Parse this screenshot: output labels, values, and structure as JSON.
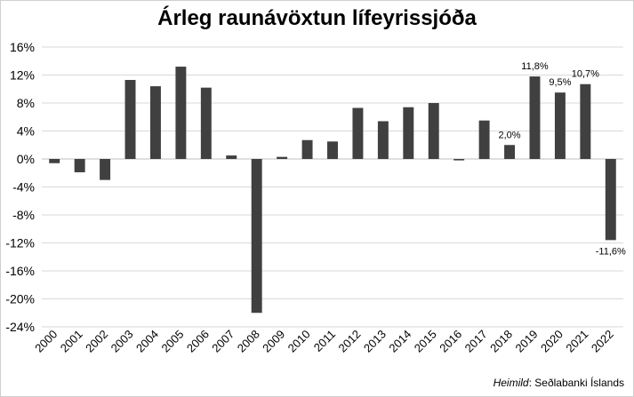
{
  "chart_data": {
    "type": "bar",
    "title": "Árleg raunávöxtun lífeyrissjóða",
    "xlabel": "",
    "ylabel": "",
    "categories": [
      "2000",
      "2001",
      "2002",
      "2003",
      "2004",
      "2005",
      "2006",
      "2007",
      "2008",
      "2009",
      "2010",
      "2011",
      "2012",
      "2013",
      "2014",
      "2015",
      "2016",
      "2017",
      "2018",
      "2019",
      "2020",
      "2021",
      "2022"
    ],
    "values": [
      -0.6,
      -1.9,
      -3.0,
      11.3,
      10.4,
      13.2,
      10.2,
      0.5,
      -22.0,
      0.3,
      2.7,
      2.5,
      7.3,
      5.4,
      7.4,
      8.0,
      -0.2,
      5.5,
      2.0,
      11.8,
      9.5,
      10.7,
      -11.6
    ],
    "ylim": [
      -24,
      16
    ],
    "yticks": [
      16,
      12,
      8,
      4,
      0,
      -4,
      -8,
      -12,
      -16,
      -20,
      -24
    ],
    "ytick_labels": [
      "16%",
      "12%",
      "8%",
      "4%",
      "0%",
      "-4%",
      "-8%",
      "-12%",
      "-16%",
      "-20%",
      "-24%"
    ],
    "data_labels": [
      {
        "category": "2018",
        "text": "2,0%"
      },
      {
        "category": "2019",
        "text": "11,8%"
      },
      {
        "category": "2020",
        "text": "9,5%"
      },
      {
        "category": "2021",
        "text": "10,7%"
      },
      {
        "category": "2022",
        "text": "-11,6%"
      }
    ],
    "grid": true,
    "bar_color": "#404040"
  },
  "source": {
    "label": "Heimild",
    "text": ": Seðlabanki Íslands"
  }
}
